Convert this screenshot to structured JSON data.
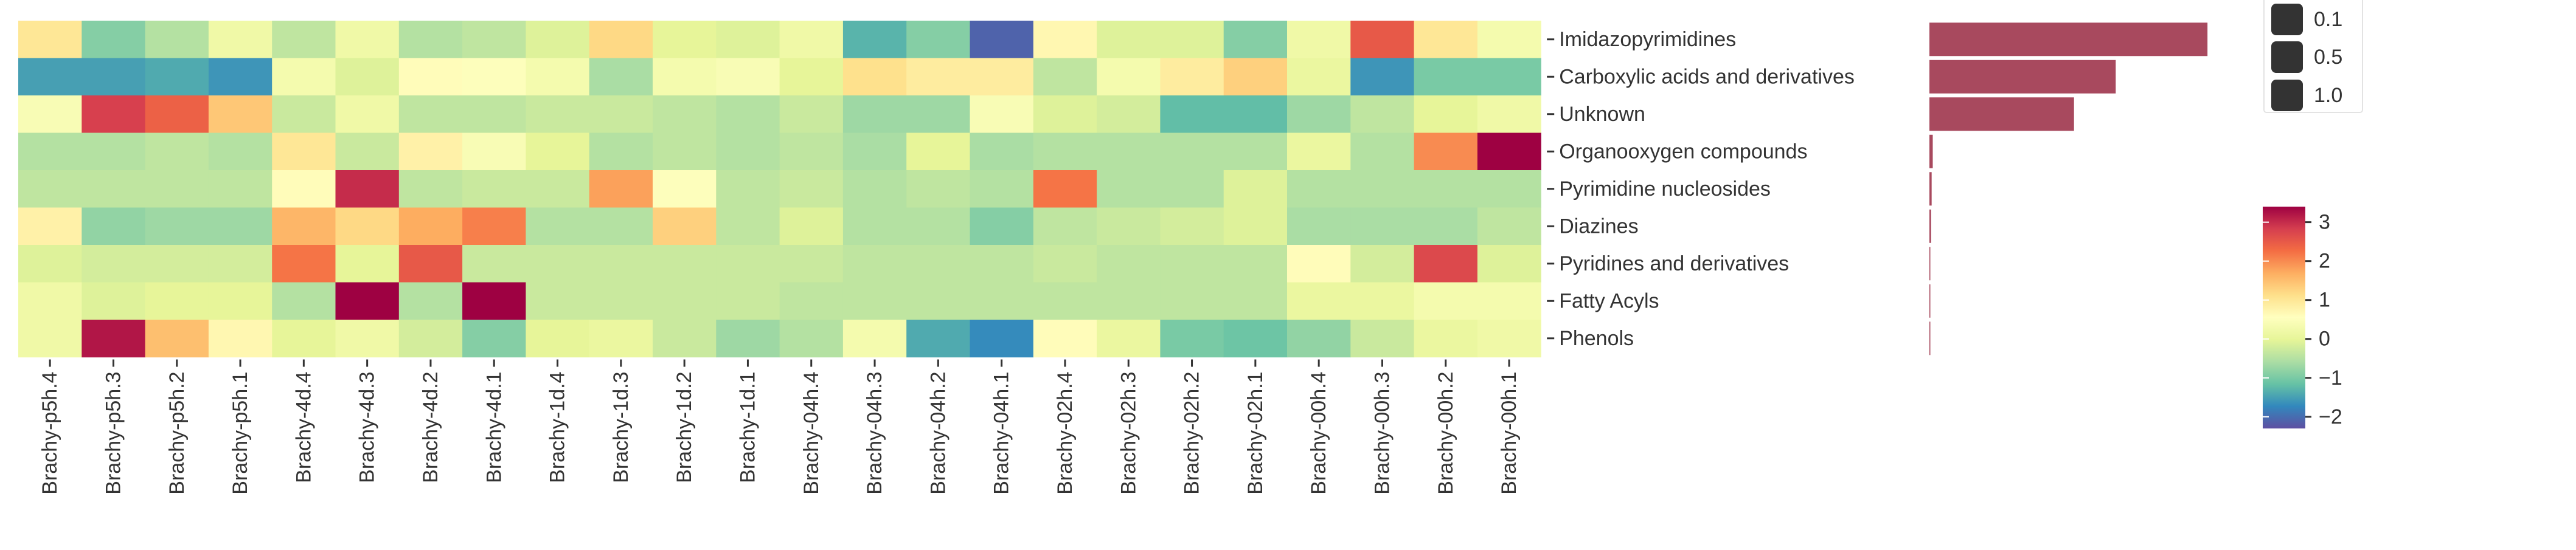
{
  "chart_data": [
    {
      "type": "heatmap",
      "title": "",
      "xlabel": "",
      "ylabel": "",
      "rows": [
        "Imidazopyrimidines",
        "Carboxylic acids and derivatives",
        "Unknown",
        "Organooxygen compounds",
        "Pyrimidine nucleosides",
        "Diazines",
        "Pyridines and derivatives",
        "Fatty Acyls",
        "Phenols"
      ],
      "columns": [
        "Brachy-p5h.4",
        "Brachy-p5h.3",
        "Brachy-p5h.2",
        "Brachy-p5h.1",
        "Brachy-4d.4",
        "Brachy-4d.3",
        "Brachy-4d.2",
        "Brachy-4d.1",
        "Brachy-1d.4",
        "Brachy-1d.3",
        "Brachy-1d.2",
        "Brachy-1d.1",
        "Brachy-04h.4",
        "Brachy-04h.3",
        "Brachy-04h.2",
        "Brachy-04h.1",
        "Brachy-02h.4",
        "Brachy-02h.3",
        "Brachy-02h.2",
        "Brachy-02h.1",
        "Brachy-00h.4",
        "Brachy-00h.3",
        "Brachy-00h.2",
        "Brachy-00h.1"
      ],
      "values": [
        [
          1.0,
          -0.9,
          -0.5,
          0.2,
          -0.4,
          0.2,
          -0.5,
          -0.4,
          -0.1,
          1.2,
          0.0,
          -0.1,
          0.2,
          -1.3,
          -0.9,
          -2.1,
          0.7,
          -0.1,
          -0.1,
          -0.9,
          0.2,
          2.5,
          1.0,
          0.3
        ],
        [
          -1.5,
          -1.5,
          -1.4,
          -1.6,
          0.3,
          -0.1,
          0.6,
          0.5,
          0.3,
          -0.6,
          0.3,
          0.4,
          0.0,
          1.1,
          0.9,
          0.9,
          -0.4,
          0.3,
          0.9,
          1.3,
          0.1,
          -1.6,
          -1.0,
          -1.0
        ],
        [
          0.4,
          2.8,
          2.4,
          1.4,
          -0.3,
          0.2,
          -0.4,
          -0.4,
          -0.3,
          -0.3,
          -0.4,
          -0.5,
          -0.3,
          -0.7,
          -0.7,
          0.4,
          -0.1,
          -0.2,
          -1.2,
          -1.2,
          -0.7,
          -0.4,
          0.0,
          0.2
        ],
        [
          -0.5,
          -0.5,
          -0.4,
          -0.5,
          1.0,
          -0.3,
          0.8,
          0.4,
          0.0,
          -0.5,
          -0.4,
          -0.5,
          -0.4,
          -0.6,
          0.0,
          -0.6,
          -0.5,
          -0.5,
          -0.5,
          -0.5,
          0.1,
          -0.5,
          2.0,
          3.4
        ],
        [
          -0.4,
          -0.4,
          -0.4,
          -0.4,
          0.6,
          3.0,
          -0.4,
          -0.3,
          -0.3,
          1.8,
          0.5,
          -0.4,
          -0.3,
          -0.5,
          -0.4,
          -0.5,
          2.2,
          -0.5,
          -0.5,
          -0.1,
          -0.5,
          -0.5,
          -0.5,
          -0.5
        ],
        [
          0.8,
          -0.8,
          -0.7,
          -0.7,
          1.6,
          1.2,
          1.7,
          2.1,
          -0.5,
          -0.5,
          1.3,
          -0.4,
          -0.1,
          -0.5,
          -0.5,
          -0.9,
          -0.4,
          -0.3,
          -0.2,
          -0.1,
          -0.6,
          -0.6,
          -0.6,
          -0.4
        ],
        [
          -0.1,
          -0.2,
          -0.2,
          -0.2,
          2.2,
          0.0,
          2.5,
          -0.3,
          -0.3,
          -0.3,
          -0.3,
          -0.3,
          -0.3,
          -0.4,
          -0.4,
          -0.4,
          -0.3,
          -0.4,
          -0.4,
          -0.4,
          0.6,
          -0.2,
          2.7,
          -0.1
        ],
        [
          0.2,
          -0.1,
          0.0,
          0.0,
          -0.5,
          3.4,
          -0.5,
          3.4,
          -0.3,
          -0.3,
          -0.3,
          -0.3,
          -0.4,
          -0.4,
          -0.4,
          -0.4,
          -0.4,
          -0.4,
          -0.4,
          -0.4,
          0.1,
          0.1,
          0.3,
          0.3
        ],
        [
          0.2,
          3.2,
          1.5,
          0.7,
          0.0,
          0.2,
          -0.2,
          -0.9,
          0.0,
          0.1,
          -0.3,
          -0.7,
          -0.5,
          0.3,
          -1.4,
          -1.7,
          0.6,
          0.1,
          -1.0,
          -1.1,
          -0.8,
          -0.3,
          0.1,
          0.2
        ]
      ],
      "vmin": -2.3,
      "vmax": 3.4,
      "colorbar": {
        "ticks": [
          3,
          2,
          1,
          0,
          -1,
          -2
        ],
        "tick_labels": [
          "3",
          "2",
          "1",
          "0",
          "−1",
          "−2"
        ]
      },
      "colormap": "Spectral_r",
      "grid": false
    },
    {
      "type": "bar",
      "orientation": "horizontal",
      "categories": [
        "Imidazopyrimidines",
        "Carboxylic acids and derivatives",
        "Unknown",
        "Organooxygen compounds",
        "Pyrimidine nucleosides",
        "Diazines",
        "Pyridines and derivatives",
        "Fatty Acyls",
        "Phenols"
      ],
      "values": [
        1.0,
        0.67,
        0.52,
        0.012,
        0.008,
        0.006,
        0.002,
        0.001,
        0.001
      ],
      "xlim": [
        0,
        1.05
      ],
      "bar_color": "#a8495e",
      "legend": {
        "placement": "top-right",
        "labels": [
          "0.1",
          "0.5",
          "1.0"
        ],
        "marker_color": "#333333"
      }
    }
  ]
}
